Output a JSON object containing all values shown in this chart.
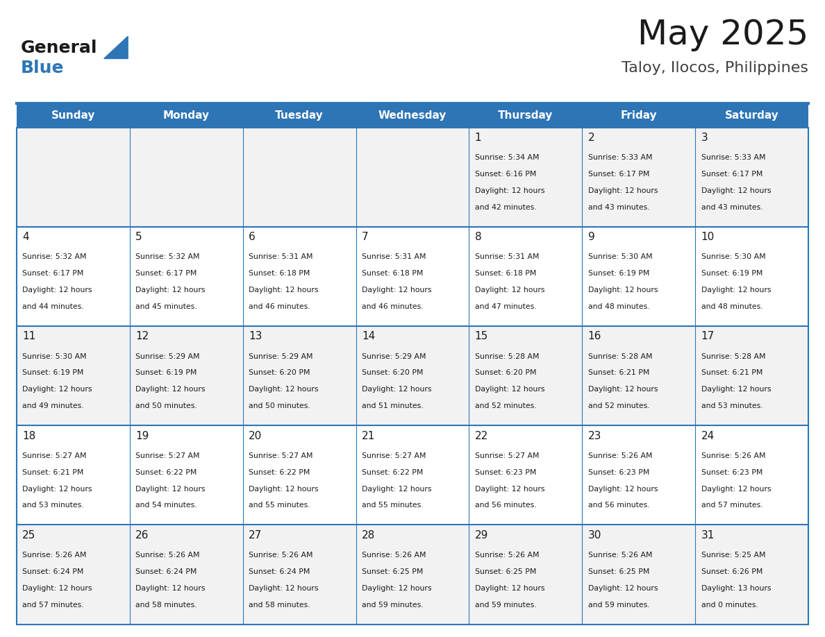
{
  "title": "May 2025",
  "subtitle": "Taloy, Ilocos, Philippines",
  "header_bg": "#2E75B6",
  "header_text": "#FFFFFF",
  "weekdays": [
    "Sunday",
    "Monday",
    "Tuesday",
    "Wednesday",
    "Thursday",
    "Friday",
    "Saturday"
  ],
  "row_colors": [
    "#F2F2F2",
    "#FFFFFF"
  ],
  "text_color": "#1a1a1a",
  "day_number_color": "#1a1a1a",
  "grid_color": "#2E75B6",
  "days": [
    {
      "day": null,
      "sunrise": null,
      "sunset": null,
      "daylight": null
    },
    {
      "day": null,
      "sunrise": null,
      "sunset": null,
      "daylight": null
    },
    {
      "day": null,
      "sunrise": null,
      "sunset": null,
      "daylight": null
    },
    {
      "day": null,
      "sunrise": null,
      "sunset": null,
      "daylight": null
    },
    {
      "day": 1,
      "sunrise": "5:34 AM",
      "sunset": "6:16 PM",
      "daylight": "12 hours\nand 42 minutes."
    },
    {
      "day": 2,
      "sunrise": "5:33 AM",
      "sunset": "6:17 PM",
      "daylight": "12 hours\nand 43 minutes."
    },
    {
      "day": 3,
      "sunrise": "5:33 AM",
      "sunset": "6:17 PM",
      "daylight": "12 hours\nand 43 minutes."
    },
    {
      "day": 4,
      "sunrise": "5:32 AM",
      "sunset": "6:17 PM",
      "daylight": "12 hours\nand 44 minutes."
    },
    {
      "day": 5,
      "sunrise": "5:32 AM",
      "sunset": "6:17 PM",
      "daylight": "12 hours\nand 45 minutes."
    },
    {
      "day": 6,
      "sunrise": "5:31 AM",
      "sunset": "6:18 PM",
      "daylight": "12 hours\nand 46 minutes."
    },
    {
      "day": 7,
      "sunrise": "5:31 AM",
      "sunset": "6:18 PM",
      "daylight": "12 hours\nand 46 minutes."
    },
    {
      "day": 8,
      "sunrise": "5:31 AM",
      "sunset": "6:18 PM",
      "daylight": "12 hours\nand 47 minutes."
    },
    {
      "day": 9,
      "sunrise": "5:30 AM",
      "sunset": "6:19 PM",
      "daylight": "12 hours\nand 48 minutes."
    },
    {
      "day": 10,
      "sunrise": "5:30 AM",
      "sunset": "6:19 PM",
      "daylight": "12 hours\nand 48 minutes."
    },
    {
      "day": 11,
      "sunrise": "5:30 AM",
      "sunset": "6:19 PM",
      "daylight": "12 hours\nand 49 minutes."
    },
    {
      "day": 12,
      "sunrise": "5:29 AM",
      "sunset": "6:19 PM",
      "daylight": "12 hours\nand 50 minutes."
    },
    {
      "day": 13,
      "sunrise": "5:29 AM",
      "sunset": "6:20 PM",
      "daylight": "12 hours\nand 50 minutes."
    },
    {
      "day": 14,
      "sunrise": "5:29 AM",
      "sunset": "6:20 PM",
      "daylight": "12 hours\nand 51 minutes."
    },
    {
      "day": 15,
      "sunrise": "5:28 AM",
      "sunset": "6:20 PM",
      "daylight": "12 hours\nand 52 minutes."
    },
    {
      "day": 16,
      "sunrise": "5:28 AM",
      "sunset": "6:21 PM",
      "daylight": "12 hours\nand 52 minutes."
    },
    {
      "day": 17,
      "sunrise": "5:28 AM",
      "sunset": "6:21 PM",
      "daylight": "12 hours\nand 53 minutes."
    },
    {
      "day": 18,
      "sunrise": "5:27 AM",
      "sunset": "6:21 PM",
      "daylight": "12 hours\nand 53 minutes."
    },
    {
      "day": 19,
      "sunrise": "5:27 AM",
      "sunset": "6:22 PM",
      "daylight": "12 hours\nand 54 minutes."
    },
    {
      "day": 20,
      "sunrise": "5:27 AM",
      "sunset": "6:22 PM",
      "daylight": "12 hours\nand 55 minutes."
    },
    {
      "day": 21,
      "sunrise": "5:27 AM",
      "sunset": "6:22 PM",
      "daylight": "12 hours\nand 55 minutes."
    },
    {
      "day": 22,
      "sunrise": "5:27 AM",
      "sunset": "6:23 PM",
      "daylight": "12 hours\nand 56 minutes."
    },
    {
      "day": 23,
      "sunrise": "5:26 AM",
      "sunset": "6:23 PM",
      "daylight": "12 hours\nand 56 minutes."
    },
    {
      "day": 24,
      "sunrise": "5:26 AM",
      "sunset": "6:23 PM",
      "daylight": "12 hours\nand 57 minutes."
    },
    {
      "day": 25,
      "sunrise": "5:26 AM",
      "sunset": "6:24 PM",
      "daylight": "12 hours\nand 57 minutes."
    },
    {
      "day": 26,
      "sunrise": "5:26 AM",
      "sunset": "6:24 PM",
      "daylight": "12 hours\nand 58 minutes."
    },
    {
      "day": 27,
      "sunrise": "5:26 AM",
      "sunset": "6:24 PM",
      "daylight": "12 hours\nand 58 minutes."
    },
    {
      "day": 28,
      "sunrise": "5:26 AM",
      "sunset": "6:25 PM",
      "daylight": "12 hours\nand 59 minutes."
    },
    {
      "day": 29,
      "sunrise": "5:26 AM",
      "sunset": "6:25 PM",
      "daylight": "12 hours\nand 59 minutes."
    },
    {
      "day": 30,
      "sunrise": "5:26 AM",
      "sunset": "6:25 PM",
      "daylight": "12 hours\nand 59 minutes."
    },
    {
      "day": 31,
      "sunrise": "5:25 AM",
      "sunset": "6:26 PM",
      "daylight": "13 hours\nand 0 minutes."
    }
  ]
}
